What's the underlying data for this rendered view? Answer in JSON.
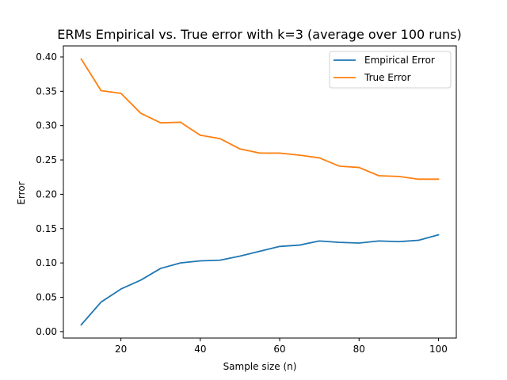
{
  "chart_data": {
    "type": "line",
    "title": "ERMs Empirical vs. True error with k=3 (average over 100 runs)",
    "xlabel": "Sample size (n)",
    "ylabel": "Error",
    "xlim": [
      5.5,
      104.5
    ],
    "ylim": [
      -0.0094,
      0.4161
    ],
    "x_ticks": [
      20,
      40,
      60,
      80,
      100
    ],
    "y_ticks": [
      0.0,
      0.05,
      0.1,
      0.15,
      0.2,
      0.25,
      0.3,
      0.35,
      0.4
    ],
    "grid": false,
    "legend_position": "top-right",
    "x": [
      10,
      15,
      20,
      25,
      30,
      35,
      40,
      45,
      50,
      55,
      60,
      65,
      70,
      75,
      80,
      85,
      90,
      95,
      100
    ],
    "series": [
      {
        "name": "Empirical Error",
        "color": "#1f77b4",
        "values": [
          0.01,
          0.043,
          0.062,
          0.075,
          0.092,
          0.1,
          0.103,
          0.104,
          0.11,
          0.117,
          0.124,
          0.126,
          0.132,
          0.13,
          0.129,
          0.132,
          0.131,
          0.133,
          0.141
        ]
      },
      {
        "name": "True Error",
        "color": "#ff7f0e",
        "values": [
          0.397,
          0.351,
          0.347,
          0.318,
          0.304,
          0.305,
          0.286,
          0.281,
          0.266,
          0.26,
          0.26,
          0.257,
          0.253,
          0.241,
          0.239,
          0.227,
          0.226,
          0.222,
          0.222
        ]
      }
    ]
  }
}
